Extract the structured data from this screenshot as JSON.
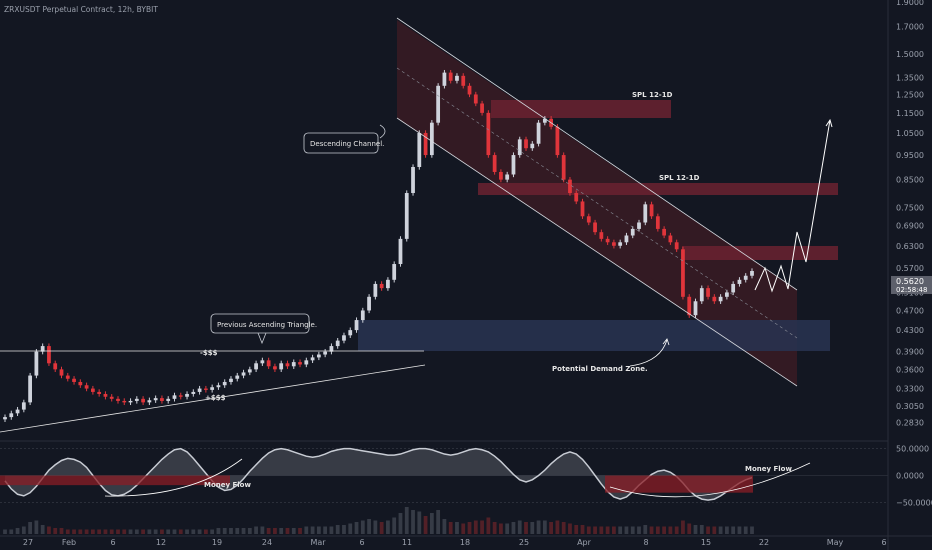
{
  "header": {
    "title": "ZRXUSDT Perpetual Contract, 12h, BYBIT"
  },
  "price_badge": {
    "price": "0.5620",
    "countdown": "02:58:48"
  },
  "chart_data": {
    "type": "candlestick",
    "title": "ZRXUSDT Perpetual Contract, 12h, BYBIT",
    "y_scale": "log",
    "ylim": [
      0.265,
      1.9
    ],
    "y_ticks": [
      "1.9000",
      "1.7000",
      "1.5000",
      "1.3500",
      "1.2500",
      "1.1500",
      "1.0500",
      "0.9500",
      "0.8500",
      "0.7500",
      "0.6900",
      "0.6300",
      "0.5700",
      "0.5100",
      "0.4700",
      "0.4300",
      "0.3900",
      "0.3600",
      "0.3300",
      "0.3050",
      "0.2830"
    ],
    "x_ticks": [
      "27",
      "Feb",
      "6",
      "12",
      "19",
      "24",
      "Mar",
      "6",
      "11",
      "18",
      "25",
      "Apr",
      "8",
      "15",
      "22",
      "May",
      "6"
    ],
    "close": [
      0.29,
      0.295,
      0.3,
      0.31,
      0.35,
      0.39,
      0.4,
      0.37,
      0.36,
      0.35,
      0.345,
      0.34,
      0.335,
      0.33,
      0.325,
      0.322,
      0.318,
      0.315,
      0.312,
      0.31,
      0.312,
      0.315,
      0.31,
      0.313,
      0.316,
      0.312,
      0.315,
      0.32,
      0.318,
      0.322,
      0.325,
      0.33,
      0.328,
      0.332,
      0.335,
      0.34,
      0.345,
      0.35,
      0.355,
      0.36,
      0.37,
      0.375,
      0.365,
      0.36,
      0.37,
      0.365,
      0.372,
      0.368,
      0.375,
      0.38,
      0.385,
      0.39,
      0.4,
      0.41,
      0.42,
      0.43,
      0.45,
      0.47,
      0.5,
      0.53,
      0.52,
      0.54,
      0.58,
      0.65,
      0.8,
      0.9,
      1.05,
      0.95,
      1.1,
      1.3,
      1.38,
      1.33,
      1.36,
      1.3,
      1.25,
      1.2,
      1.15,
      0.95,
      0.88,
      0.85,
      0.87,
      0.95,
      1.02,
      0.98,
      1.0,
      1.1,
      1.12,
      1.08,
      0.95,
      0.85,
      0.8,
      0.77,
      0.72,
      0.7,
      0.67,
      0.65,
      0.64,
      0.63,
      0.64,
      0.66,
      0.68,
      0.7,
      0.76,
      0.72,
      0.68,
      0.66,
      0.64,
      0.62,
      0.5,
      0.46,
      0.49,
      0.52,
      0.5,
      0.49,
      0.5,
      0.51,
      0.53,
      0.54,
      0.55,
      0.562
    ],
    "volume": [
      3,
      3,
      4,
      5,
      8,
      9,
      6,
      5,
      4,
      4,
      3,
      3,
      3,
      3,
      3,
      3,
      3,
      3,
      3,
      3,
      3,
      3,
      3,
      3,
      3,
      3,
      3,
      3,
      3,
      3,
      3,
      3,
      3,
      3,
      4,
      4,
      4,
      4,
      4,
      4,
      5,
      5,
      4,
      4,
      4,
      4,
      4,
      4,
      5,
      5,
      5,
      5,
      5,
      6,
      6,
      7,
      8,
      9,
      10,
      9,
      8,
      9,
      11,
      14,
      18,
      16,
      15,
      12,
      14,
      16,
      10,
      8,
      8,
      7,
      8,
      9,
      9,
      11,
      8,
      7,
      7,
      8,
      9,
      8,
      8,
      9,
      9,
      8,
      9,
      8,
      7,
      6,
      6,
      5,
      5,
      5,
      5,
      5,
      5,
      5,
      5,
      5,
      6,
      5,
      5,
      5,
      5,
      5,
      9,
      7,
      6,
      6,
      5,
      5,
      5,
      5,
      5,
      5,
      5,
      5
    ],
    "money_flow": [
      -10,
      -25,
      -35,
      -38,
      -32,
      -20,
      -5,
      10,
      20,
      28,
      32,
      30,
      25,
      15,
      0,
      -15,
      -28,
      -36,
      -38,
      -35,
      -28,
      -18,
      -6,
      6,
      18,
      30,
      40,
      48,
      50,
      44,
      32,
      18,
      4,
      -10,
      -22,
      -28,
      -26,
      -18,
      -6,
      8,
      20,
      32,
      42,
      48,
      50,
      48,
      44,
      40,
      36,
      34,
      36,
      40,
      45,
      48,
      50,
      50,
      48,
      46,
      44,
      42,
      40,
      38,
      38,
      40,
      44,
      48,
      50,
      50,
      48,
      44,
      40,
      38,
      40,
      44,
      48,
      50,
      48,
      44,
      36,
      26,
      14,
      2,
      -8,
      -12,
      -8,
      0,
      10,
      22,
      32,
      40,
      44,
      40,
      30,
      16,
      0,
      -16,
      -30,
      -40,
      -44,
      -40,
      -30,
      -18,
      -8,
      2,
      8,
      10,
      6,
      -2,
      -14,
      -28,
      -38,
      -44,
      -46,
      -44,
      -38,
      -30,
      -22,
      -14,
      -8,
      -4
    ],
    "oscillator_ticks": [
      "50.0000",
      "0.0000",
      "−50.0000"
    ],
    "annotations": {
      "descending_channel": "Descending Channel.",
      "ascending_triangle": "Previous Ascending Triangle.",
      "demand_zone": "Potential Demand Zone.",
      "spl_1": "SPL 12-1D",
      "spl_2": "SPL 12-1D",
      "liq_minus": "-$$$",
      "liq_plus": "+$$$",
      "money_flow_1": "Money Flow",
      "money_flow_2": "Money Flow"
    },
    "colors": {
      "up": "#cfd3dc",
      "down": "#e0353b",
      "background": "#131722",
      "channel_fill": "#5a1e26",
      "supply_fill": "#6b2230",
      "demand_fill": "#28324f"
    }
  }
}
